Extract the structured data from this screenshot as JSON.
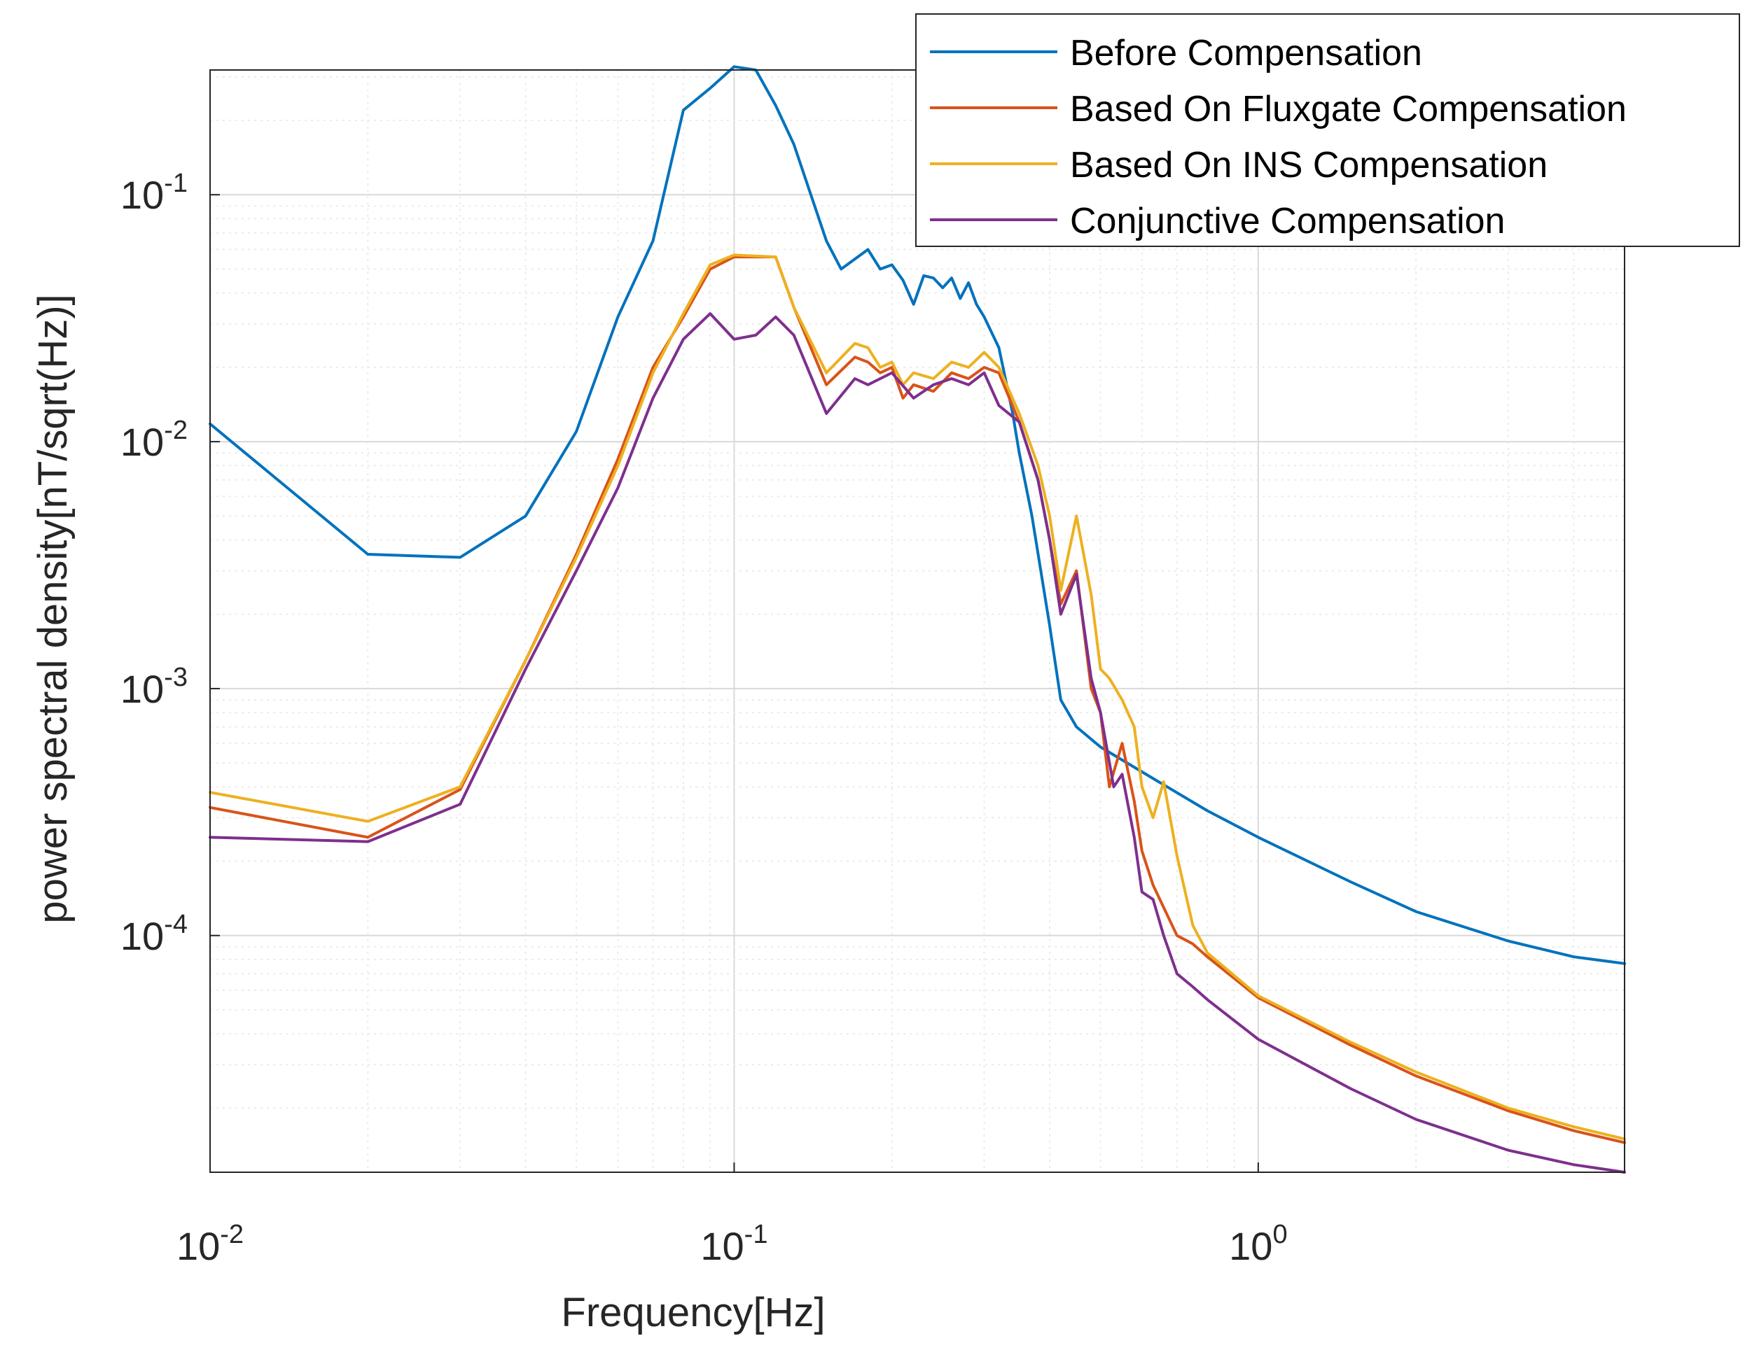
{
  "chart_data": {
    "type": "line",
    "xscale": "log",
    "yscale": "log",
    "xlabel": "Frequency[Hz]",
    "ylabel": "power spectral density[nT/sqrt(Hz)]",
    "xlim": [
      0.01,
      5
    ],
    "ylim": [
      1.1e-05,
      0.32
    ],
    "grid": true,
    "legend_position": "top-right",
    "x_ticks": [
      {
        "base": "10",
        "exp": "-2",
        "value": 0.01
      },
      {
        "base": "10",
        "exp": "-1",
        "value": 0.1
      },
      {
        "base": "10",
        "exp": "0",
        "value": 1
      }
    ],
    "y_ticks": [
      {
        "base": "10",
        "exp": "-4",
        "value": 0.0001
      },
      {
        "base": "10",
        "exp": "-3",
        "value": 0.001
      },
      {
        "base": "10",
        "exp": "-2",
        "value": 0.01
      },
      {
        "base": "10",
        "exp": "-1",
        "value": 0.1
      }
    ],
    "series": [
      {
        "name": "Before Compensation",
        "color": "#0072BD",
        "x": [
          0.01,
          0.02,
          0.03,
          0.04,
          0.05,
          0.06,
          0.07,
          0.08,
          0.09,
          0.1,
          0.11,
          0.12,
          0.13,
          0.15,
          0.16,
          0.18,
          0.19,
          0.2,
          0.21,
          0.22,
          0.23,
          0.24,
          0.25,
          0.26,
          0.27,
          0.28,
          0.29,
          0.3,
          0.32,
          0.34,
          0.35,
          0.37,
          0.4,
          0.42,
          0.45,
          0.5,
          0.6,
          0.8,
          1.0,
          1.5,
          2.0,
          3.0,
          4.0,
          5.0
        ],
        "y": [
          0.0118,
          0.0035,
          0.0034,
          0.005,
          0.011,
          0.032,
          0.065,
          0.22,
          0.27,
          0.33,
          0.32,
          0.23,
          0.16,
          0.065,
          0.05,
          0.06,
          0.05,
          0.052,
          0.045,
          0.036,
          0.047,
          0.046,
          0.042,
          0.046,
          0.038,
          0.044,
          0.036,
          0.032,
          0.024,
          0.013,
          0.009,
          0.005,
          0.0018,
          0.0009,
          0.0007,
          0.00058,
          0.00046,
          0.00032,
          0.00025,
          0.000165,
          0.000125,
          9.5e-05,
          8.2e-05,
          7.7e-05
        ]
      },
      {
        "name": "Based On Fluxgate Compensation",
        "color": "#D95319",
        "x": [
          0.01,
          0.02,
          0.03,
          0.04,
          0.05,
          0.06,
          0.07,
          0.08,
          0.09,
          0.1,
          0.12,
          0.13,
          0.15,
          0.17,
          0.18,
          0.19,
          0.2,
          0.21,
          0.22,
          0.24,
          0.26,
          0.28,
          0.3,
          0.32,
          0.35,
          0.38,
          0.4,
          0.42,
          0.45,
          0.48,
          0.5,
          0.52,
          0.55,
          0.58,
          0.6,
          0.63,
          0.66,
          0.7,
          0.75,
          0.8,
          1.0,
          1.5,
          2.0,
          3.0,
          4.0,
          5.0
        ],
        "y": [
          0.00033,
          0.00025,
          0.00039,
          0.0013,
          0.0035,
          0.0085,
          0.02,
          0.032,
          0.05,
          0.056,
          0.056,
          0.035,
          0.017,
          0.022,
          0.021,
          0.019,
          0.02,
          0.015,
          0.017,
          0.016,
          0.019,
          0.018,
          0.02,
          0.019,
          0.012,
          0.007,
          0.004,
          0.0022,
          0.003,
          0.001,
          0.0008,
          0.0004,
          0.0006,
          0.00035,
          0.00022,
          0.00016,
          0.00013,
          0.0001,
          9.25e-05,
          8.2e-05,
          5.6e-05,
          3.6e-05,
          2.7e-05,
          1.95e-05,
          1.62e-05,
          1.45e-05
        ]
      },
      {
        "name": "Based On INS Compensation",
        "color": "#EDB120",
        "x": [
          0.01,
          0.02,
          0.03,
          0.04,
          0.05,
          0.06,
          0.07,
          0.08,
          0.09,
          0.1,
          0.12,
          0.13,
          0.15,
          0.17,
          0.18,
          0.19,
          0.2,
          0.21,
          0.22,
          0.24,
          0.26,
          0.28,
          0.3,
          0.32,
          0.35,
          0.38,
          0.4,
          0.42,
          0.45,
          0.48,
          0.5,
          0.52,
          0.55,
          0.58,
          0.6,
          0.63,
          0.66,
          0.7,
          0.75,
          0.8,
          1.0,
          1.5,
          2.0,
          3.0,
          4.0,
          5.0
        ],
        "y": [
          0.00038,
          0.00029,
          0.0004,
          0.0013,
          0.0034,
          0.008,
          0.019,
          0.033,
          0.052,
          0.057,
          0.056,
          0.035,
          0.019,
          0.025,
          0.024,
          0.02,
          0.021,
          0.017,
          0.019,
          0.018,
          0.021,
          0.02,
          0.023,
          0.02,
          0.013,
          0.008,
          0.005,
          0.0025,
          0.005,
          0.0024,
          0.0012,
          0.0011,
          0.0009,
          0.0007,
          0.0004,
          0.0003,
          0.00042,
          0.00021,
          0.00011,
          8.5e-05,
          5.7e-05,
          3.7e-05,
          2.8e-05,
          2e-05,
          1.68e-05,
          1.5e-05
        ]
      },
      {
        "name": "Conjunctive Compensation",
        "color": "#7E2F8E",
        "x": [
          0.01,
          0.02,
          0.03,
          0.04,
          0.05,
          0.06,
          0.07,
          0.08,
          0.09,
          0.1,
          0.11,
          0.12,
          0.13,
          0.15,
          0.17,
          0.18,
          0.2,
          0.22,
          0.24,
          0.26,
          0.28,
          0.3,
          0.32,
          0.35,
          0.38,
          0.4,
          0.42,
          0.45,
          0.48,
          0.5,
          0.53,
          0.55,
          0.58,
          0.6,
          0.63,
          0.66,
          0.7,
          0.75,
          0.8,
          1.0,
          1.5,
          2.0,
          3.0,
          4.0,
          5.0
        ],
        "y": [
          0.00025,
          0.00024,
          0.00034,
          0.0012,
          0.003,
          0.0065,
          0.015,
          0.026,
          0.033,
          0.026,
          0.027,
          0.032,
          0.027,
          0.013,
          0.018,
          0.017,
          0.019,
          0.015,
          0.017,
          0.018,
          0.017,
          0.019,
          0.014,
          0.012,
          0.007,
          0.004,
          0.002,
          0.0029,
          0.0011,
          0.0008,
          0.0004,
          0.00045,
          0.00025,
          0.00015,
          0.00014,
          0.0001,
          7e-05,
          6.2e-05,
          5.5e-05,
          3.8e-05,
          2.4e-05,
          1.8e-05,
          1.35e-05,
          1.18e-05,
          1.1e-05
        ]
      }
    ]
  }
}
